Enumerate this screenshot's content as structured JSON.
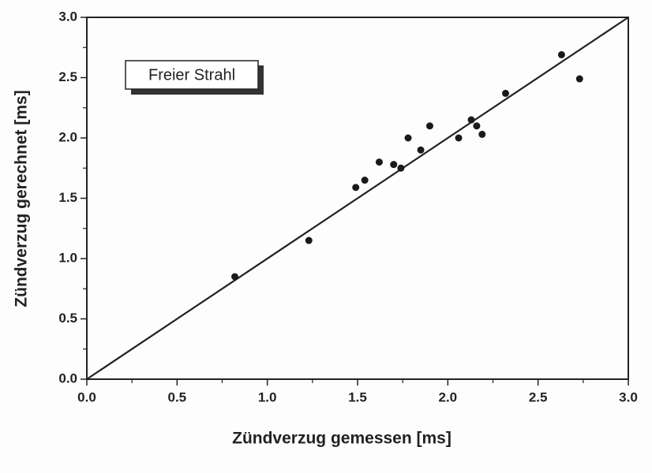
{
  "chart_data": {
    "type": "scatter",
    "xlabel": "Zündverzug gemessen [ms]",
    "ylabel": "Zündverzug gerechnet [ms]",
    "annotation": "Freier Strahl",
    "x": [
      0.82,
      1.23,
      1.49,
      1.54,
      1.62,
      1.7,
      1.74,
      1.78,
      1.85,
      1.9,
      2.06,
      2.13,
      2.16,
      2.19,
      2.32,
      2.63,
      2.73
    ],
    "values": [
      0.85,
      1.15,
      1.59,
      1.65,
      1.8,
      1.78,
      1.75,
      2.0,
      1.9,
      2.1,
      2.0,
      2.15,
      2.1,
      2.03,
      2.37,
      2.69,
      2.49
    ],
    "color": "#1a1a1a",
    "reference_line": {
      "x": [
        0,
        3
      ],
      "y": [
        0,
        3
      ]
    },
    "xlim": [
      0,
      3
    ],
    "ylim": [
      0,
      3
    ],
    "xticks": [
      {
        "value": 0,
        "label": "0.0"
      },
      0.5,
      {
        "value": 1,
        "label": "1.0"
      },
      1.5,
      {
        "value": 2,
        "label": "2.0"
      },
      2.5,
      {
        "value": 3,
        "label": "3.0"
      }
    ],
    "yticks": [
      {
        "value": 0,
        "label": "0.0"
      },
      0.5,
      {
        "value": 1,
        "label": "1.0"
      },
      1.5,
      {
        "value": 2,
        "label": "2.0"
      },
      2.5,
      {
        "value": 3,
        "label": "3.0"
      }
    ],
    "xminorticks": [
      0.25,
      0.75,
      1.25,
      1.75,
      2.25,
      2.75
    ],
    "yminorticks": [
      0.25,
      0.75,
      1.25,
      1.75,
      2.25,
      2.75
    ]
  }
}
